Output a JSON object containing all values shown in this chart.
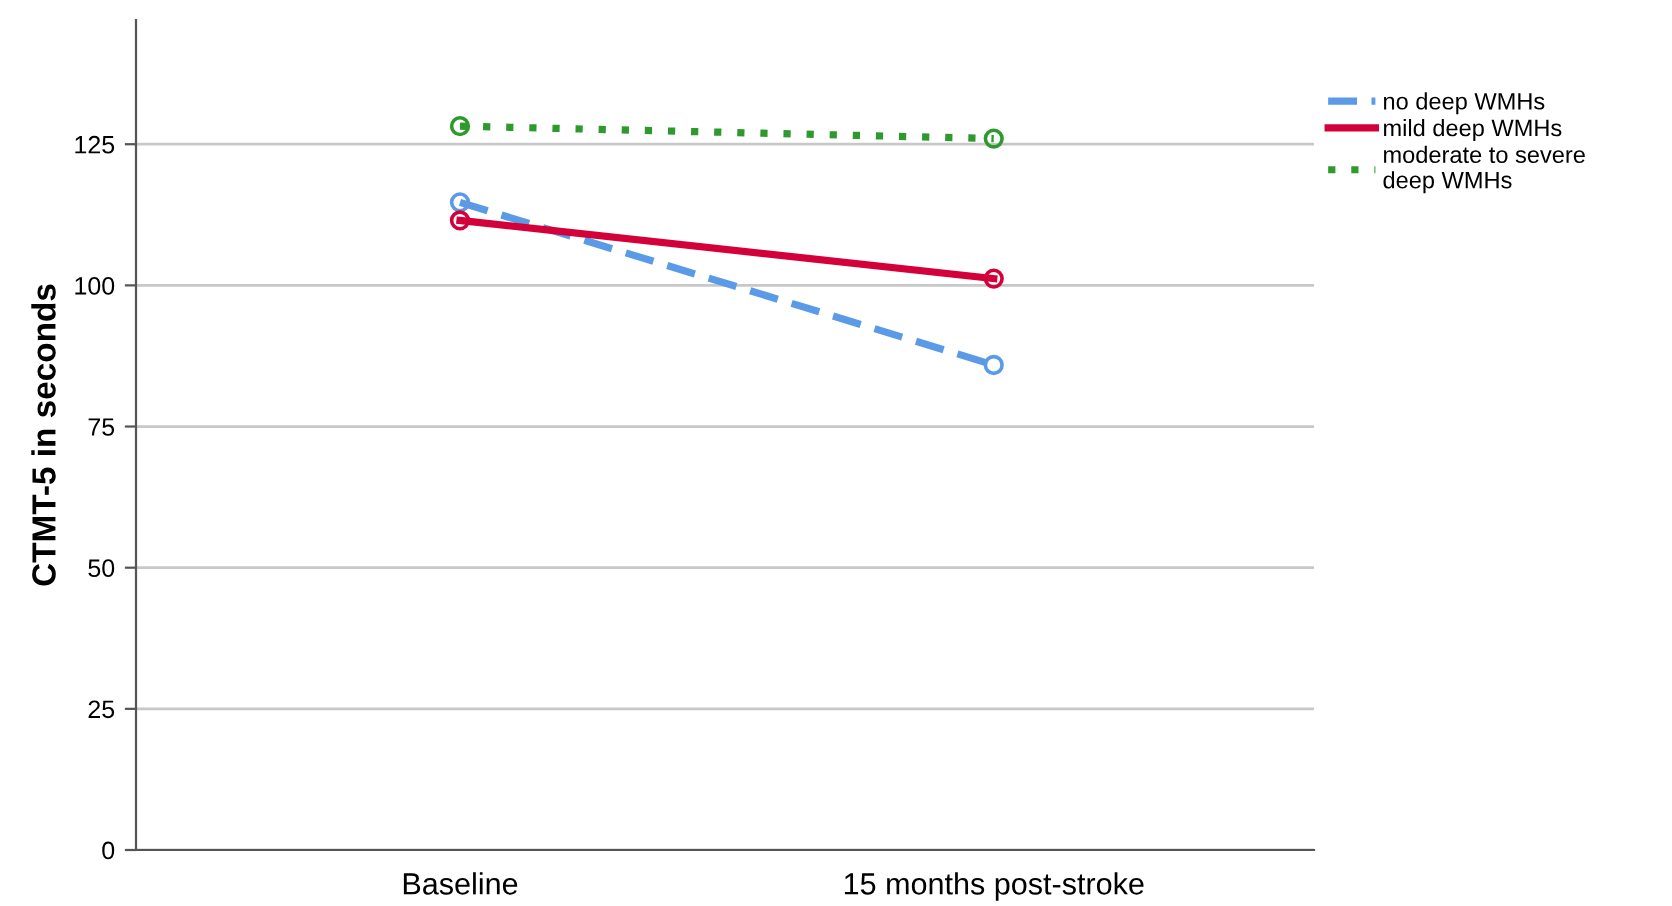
{
  "chart_data": {
    "type": "line",
    "ylabel": "CTMT-5 in seconds",
    "categories": [
      "Baseline",
      "15 months post-stroke"
    ],
    "series": [
      {
        "name": "no deep WMHs",
        "color": "#5b9ae6",
        "values": [
          114.7,
          85.9
        ],
        "line_style": "dashed"
      },
      {
        "name": "mild deep WMHs",
        "color": "#d4003a",
        "values": [
          111.5,
          101.2
        ],
        "line_style": "solid"
      },
      {
        "name": "moderate to severe deep WMHs",
        "color": "#2e9a2e",
        "values": [
          128.2,
          126
        ],
        "line_style": "dotted"
      }
    ],
    "ylim": [
      0,
      147
    ],
    "yticks": [
      0,
      25,
      50,
      75,
      100,
      125
    ],
    "grid": "y",
    "legend": "top right",
    "marker": "circle"
  }
}
